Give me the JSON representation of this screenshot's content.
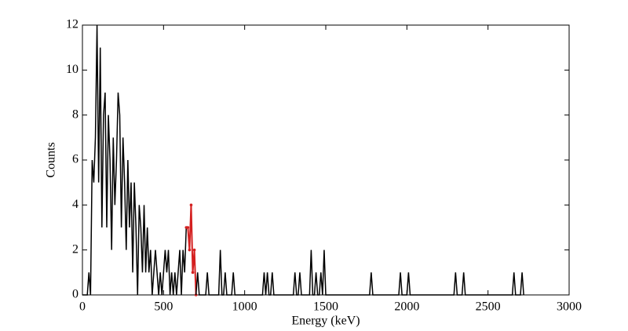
{
  "chart_data": {
    "type": "line",
    "xlabel": "Energy (keV)",
    "ylabel": "Counts",
    "xlim": [
      0,
      3000
    ],
    "xticks": [
      0,
      500,
      1000,
      1500,
      2000,
      2500,
      3000
    ],
    "ylim": [
      0,
      12
    ],
    "yticks": [
      0,
      2,
      4,
      6,
      8,
      10,
      12
    ],
    "series": [
      {
        "color": "#000000",
        "markers": false,
        "x": [
          0,
          10,
          20,
          30,
          40,
          50,
          60,
          70,
          80,
          90,
          100,
          110,
          120,
          130,
          140,
          150,
          160,
          170,
          180,
          190,
          200,
          210,
          220,
          230,
          240,
          250,
          260,
          270,
          280,
          290,
          300,
          310,
          320,
          330,
          340,
          350,
          360,
          370,
          380,
          390,
          400,
          410,
          420,
          430,
          440,
          450,
          460,
          470,
          480,
          490,
          500,
          510,
          520,
          530,
          540,
          550,
          560,
          570,
          580,
          590,
          600,
          610,
          620,
          630,
          640
        ],
        "values": [
          0,
          0,
          0,
          0,
          1,
          0,
          6,
          5,
          7,
          12,
          5,
          11,
          3,
          8,
          9,
          3,
          8,
          6,
          2,
          7,
          4,
          6,
          9,
          8,
          3,
          7,
          5,
          2,
          6,
          3,
          5,
          1,
          5,
          3,
          0,
          4,
          3,
          1,
          4,
          1,
          3,
          1,
          2,
          0,
          1,
          2,
          1,
          0,
          1,
          0,
          1,
          2,
          1,
          2,
          0,
          1,
          0,
          1,
          0,
          1,
          2,
          0,
          2,
          1,
          3
        ]
      },
      {
        "color": "#d42020",
        "markers": true,
        "x": [
          640,
          650,
          660,
          670,
          680,
          690,
          700
        ],
        "values": [
          3,
          3,
          2,
          4,
          1,
          2,
          0
        ]
      },
      {
        "color": "#000000",
        "markers": false,
        "x": [
          700,
          710,
          720,
          760,
          770,
          780,
          840,
          850,
          860,
          870,
          880,
          890,
          920,
          930,
          940,
          1110,
          1120,
          1130,
          1140,
          1150,
          1160,
          1170,
          1180,
          1300,
          1310,
          1320,
          1330,
          1340,
          1350,
          1400,
          1410,
          1420,
          1430,
          1440,
          1450,
          1460,
          1470,
          1480,
          1490,
          1500,
          1770,
          1780,
          1790,
          1950,
          1960,
          1970,
          2000,
          2010,
          2020,
          2290,
          2300,
          2310,
          2340,
          2350,
          2360,
          2650,
          2660,
          2670,
          2700,
          2710,
          2720
        ],
        "values": [
          0,
          1,
          0,
          0,
          1,
          0,
          0,
          2,
          0,
          0,
          1,
          0,
          0,
          1,
          0,
          0,
          1,
          0,
          1,
          0,
          0,
          1,
          0,
          0,
          1,
          0,
          0,
          1,
          0,
          0,
          2,
          0,
          0,
          1,
          0,
          0,
          1,
          0,
          2,
          0,
          0,
          1,
          0,
          0,
          1,
          0,
          0,
          1,
          0,
          0,
          1,
          0,
          0,
          1,
          0,
          0,
          1,
          0,
          0,
          1,
          0
        ]
      }
    ]
  }
}
